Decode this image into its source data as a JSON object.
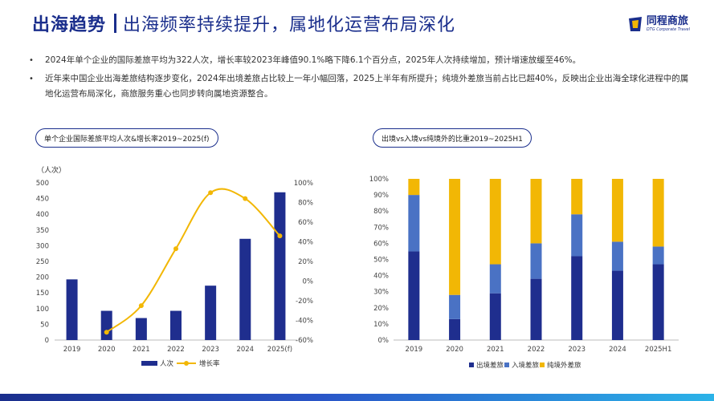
{
  "header": {
    "title_strong": "出海趋势",
    "title_light": "出海频率持续提升，属地化运营布局深化"
  },
  "logo": {
    "name": "同程商旅",
    "sub": "DTG Corporate Travel"
  },
  "bullets": [
    "2024年单个企业的国际差旅平均为322人次，增长率较2023年峰值90.1%略下降6.1个百分点，2025年人次持续增加，预计增速放缓至46%。",
    "近年来中国企业出海差旅结构逐步变化，2024年出境差旅占比较上一年小幅回落，2025上半年有所提升；纯境外差旅当前占比已超40%，反映出企业出海全球化进程中的属地化运营布局深化，商旅服务重心也同步转向属地资源整合。"
  ],
  "colors": {
    "navy": "#1f2e8e",
    "blue": "#4a72c4",
    "gold": "#f2b705"
  },
  "chart_data": [
    {
      "type": "bar",
      "title": "单个企业国际差旅平均人次&增长率2019~2025(f)",
      "unit_label": "（人次）",
      "categories": [
        "2019",
        "2020",
        "2021",
        "2022",
        "2023",
        "2024",
        "2025(f)"
      ],
      "series": [
        {
          "name": "人次",
          "kind": "bar",
          "axis": "left",
          "values": [
            193,
            93,
            70,
            93,
            173,
            322,
            470
          ]
        },
        {
          "name": "增长率",
          "kind": "line",
          "axis": "right",
          "values": [
            null,
            -52,
            -25,
            33,
            90,
            84,
            46
          ]
        }
      ],
      "ylim_left": [
        0,
        500
      ],
      "yticks_left": [
        "0",
        "50",
        "100",
        "150",
        "200",
        "250",
        "300",
        "350",
        "400",
        "450",
        "500"
      ],
      "ylim_right": [
        -60,
        100
      ],
      "yticks_right": [
        "-60%",
        "-40%",
        "-20%",
        "0%",
        "20%",
        "40%",
        "60%",
        "80%",
        "100%"
      ],
      "legend": [
        "人次",
        "增长率"
      ]
    },
    {
      "type": "bar",
      "stacked": true,
      "title": "出境vs入境vs纯境外的比重2019~2025H1",
      "categories": [
        "2019",
        "2020",
        "2021",
        "2022",
        "2023",
        "2024",
        "2025H1"
      ],
      "series": [
        {
          "name": "出境差旅",
          "values": [
            55,
            13,
            29,
            38,
            52,
            43,
            47
          ]
        },
        {
          "name": "入境差旅",
          "values": [
            35,
            15,
            18,
            22,
            26,
            18,
            11
          ]
        },
        {
          "name": "纯境外差旅",
          "values": [
            10,
            72,
            53,
            40,
            22,
            39,
            42
          ]
        }
      ],
      "ylim": [
        0,
        100
      ],
      "yticks": [
        "0%",
        "10%",
        "20%",
        "30%",
        "40%",
        "50%",
        "60%",
        "70%",
        "80%",
        "90%",
        "100%"
      ],
      "legend": [
        "出境差旅",
        "入境差旅",
        "纯境外差旅"
      ]
    }
  ]
}
